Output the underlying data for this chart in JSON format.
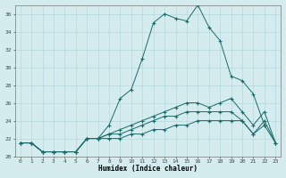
{
  "xlabel": "Humidex (Indice chaleur)",
  "bg_color": "#d4ecee",
  "grid_color": "#b8d8dc",
  "line_color": "#1a6b6b",
  "xlim": [
    -0.5,
    23.5
  ],
  "ylim": [
    20,
    37
  ],
  "yticks": [
    20,
    22,
    24,
    26,
    28,
    30,
    32,
    34,
    36
  ],
  "xticks": [
    0,
    1,
    2,
    3,
    4,
    5,
    6,
    7,
    8,
    9,
    10,
    11,
    12,
    13,
    14,
    15,
    16,
    17,
    18,
    19,
    20,
    21,
    22,
    23
  ],
  "series": [
    {
      "x": [
        0,
        1,
        2,
        3,
        4,
        5,
        6,
        7,
        8,
        9,
        10,
        11,
        12,
        13,
        14,
        15,
        16,
        17,
        18,
        19,
        20,
        21,
        22
      ],
      "y": [
        21.5,
        21.5,
        20.5,
        20.5,
        20.5,
        20.5,
        22.0,
        22.0,
        23.5,
        26.5,
        27.5,
        31.0,
        35.0,
        36.0,
        35.5,
        35.2,
        37.0,
        34.5,
        33.0,
        29.0,
        28.5,
        27.0,
        23.5
      ]
    },
    {
      "x": [
        0,
        1,
        2,
        3,
        4,
        5,
        6,
        7,
        8,
        9,
        10,
        11,
        12,
        13,
        14,
        15,
        16,
        17,
        18,
        19,
        20,
        21,
        22,
        23
      ],
      "y": [
        21.5,
        21.5,
        20.5,
        20.5,
        20.5,
        20.5,
        22.0,
        22.0,
        22.5,
        23.0,
        23.5,
        24.0,
        24.5,
        25.0,
        25.5,
        26.0,
        26.0,
        25.5,
        26.0,
        26.5,
        25.0,
        23.5,
        25.0,
        21.5
      ]
    },
    {
      "x": [
        0,
        1,
        2,
        3,
        4,
        5,
        6,
        7,
        8,
        9,
        10,
        11,
        12,
        13,
        14,
        15,
        16,
        17,
        18,
        19,
        20,
        21,
        22,
        23
      ],
      "y": [
        21.5,
        21.5,
        20.5,
        20.5,
        20.5,
        20.5,
        22.0,
        22.0,
        22.5,
        22.5,
        23.0,
        23.5,
        24.0,
        24.5,
        24.5,
        25.0,
        25.0,
        25.0,
        25.0,
        25.0,
        24.0,
        22.5,
        24.0,
        21.5
      ]
    },
    {
      "x": [
        0,
        1,
        2,
        3,
        4,
        5,
        6,
        7,
        8,
        9,
        10,
        11,
        12,
        13,
        14,
        15,
        16,
        17,
        18,
        19,
        20,
        21,
        22,
        23
      ],
      "y": [
        21.5,
        21.5,
        20.5,
        20.5,
        20.5,
        20.5,
        22.0,
        22.0,
        22.0,
        22.0,
        22.5,
        22.5,
        23.0,
        23.0,
        23.5,
        23.5,
        24.0,
        24.0,
        24.0,
        24.0,
        24.0,
        22.5,
        23.5,
        21.5
      ]
    }
  ]
}
